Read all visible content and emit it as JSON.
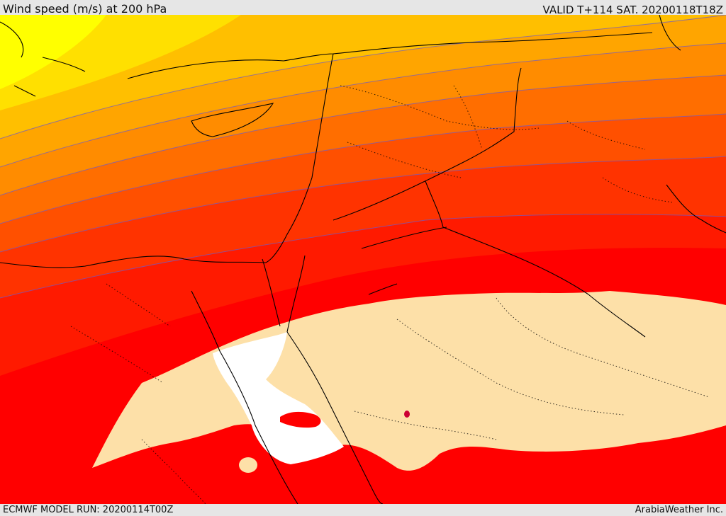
{
  "header": {
    "title": "Wind speed (m/s) at 200 hPa",
    "valid_time": "VALID T+114 SAT. 20200118T18Z"
  },
  "footer": {
    "model_run": "ECMWF MODEL RUN: 20200114T00Z",
    "credit": "ArabiaWeather Inc."
  },
  "colors": {
    "band_1": "#ffff00",
    "band_2": "#ffe000",
    "band_3": "#ffbf00",
    "band_4": "#ffa500",
    "band_5": "#ff8c00",
    "band_6": "#ff6e00",
    "band_7": "#ff5000",
    "band_8": "#ff3300",
    "band_9": "#ff1a00",
    "band_10": "#ff0000",
    "low_wind": "#fde0a8",
    "lowest_wind": "#ffffff",
    "contour": "#6a5acd",
    "coast": "#000000"
  }
}
